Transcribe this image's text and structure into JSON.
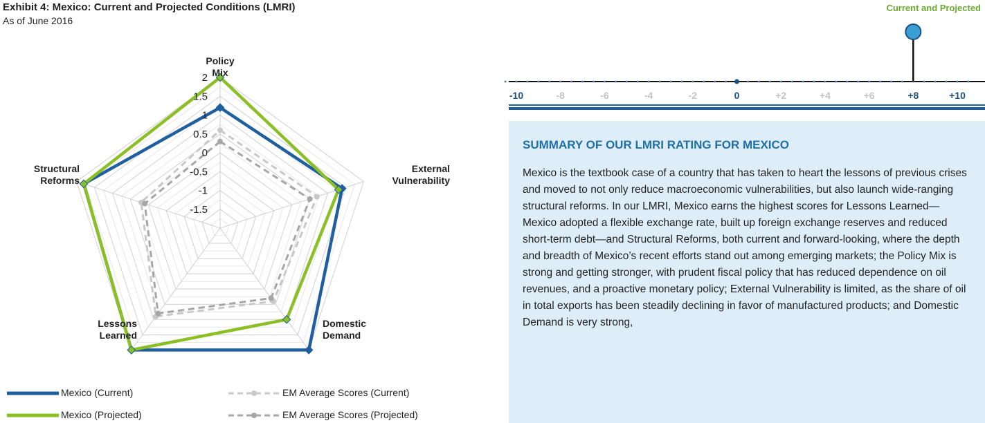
{
  "chart_data": {
    "type": "radar",
    "title": "Exhibit 4: Mexico: Current and Projected Conditions (LMRI)",
    "subtitle": "As of June 2016",
    "categories": [
      "Policy Mix",
      "External Vulnerability",
      "Domestic Demand",
      "Lessons Learned",
      "Structural Reforms"
    ],
    "ylim": [
      -2,
      2
    ],
    "yticks": [
      -2,
      {
        "value": -1.5,
        "label": "-1.5"
      },
      {
        "value": -1,
        "label": "-1"
      },
      {
        "value": -0.5,
        "label": "-0.5"
      },
      0,
      0.5,
      1,
      1.5,
      2
    ],
    "series": [
      {
        "name": "Mexico (Current)",
        "color": "#1f5fa0",
        "dashed": false,
        "values": [
          1.2,
          1.4,
          2.0,
          2.0,
          1.8
        ]
      },
      {
        "name": "Mexico (Projected)",
        "color": "#8cbf26",
        "dashed": false,
        "values": [
          2.0,
          1.3,
          1.0,
          2.0,
          1.8
        ]
      },
      {
        "name": "EM Average Scores (Current)",
        "color": "#c8c8c8",
        "dashed": true,
        "values": [
          0.6,
          0.7,
          0.4,
          0.9,
          0.2
        ]
      },
      {
        "name": "EM Average Scores (Projected)",
        "color": "#a6a6a6",
        "dashed": true,
        "values": [
          0.3,
          0.5,
          0.3,
          0.8,
          0.1
        ]
      }
    ]
  },
  "rating_scale": {
    "ticks": [
      {
        "value": -10,
        "label": "-10",
        "color": "#1f4f7f"
      },
      {
        "value": -8,
        "label": "-8",
        "color": "#c4c4c4"
      },
      {
        "value": -6,
        "label": "-6",
        "color": "#c4c4c4"
      },
      {
        "value": -4,
        "label": "-4",
        "color": "#c4c4c4"
      },
      {
        "value": -2,
        "label": "-2",
        "color": "#c4c4c4"
      },
      {
        "value": 0,
        "label": "0",
        "color": "#1f4f7f"
      },
      {
        "value": 2,
        "label": "+2",
        "color": "#c4c4c4"
      },
      {
        "value": 4,
        "label": "+4",
        "color": "#c4c4c4"
      },
      {
        "value": 6,
        "label": "+6",
        "color": "#c4c4c4"
      },
      {
        "value": 8,
        "label": "+8",
        "color": "#1f4f7f"
      },
      {
        "value": 10,
        "label": "+10",
        "color": "#1f4f7f"
      }
    ],
    "marker_label": "Current and Projected",
    "marker_value": 8
  },
  "summary": {
    "title": "SUMMARY OF OUR LMRI RATING FOR MEXICO",
    "text": "Mexico is the textbook case of a country that has taken to heart the lessons of previous crises and moved to not only reduce macroeconomic vulnerabilities, but also launch wide-ranging structural reforms. In our LMRI, Mexico earns the highest scores for Lessons Learned—Mexico adopted a flexible exchange rate, built up foreign exchange reserves and reduced short-term debt—and Structural Reforms, both current and forward-looking, where the depth and breadth of Mexico’s recent efforts stand out among emerging markets; the Policy Mix is strong and getting stronger, with prudent fiscal policy that has reduced dependence on oil revenues, and a proactive monetary policy; External Vulnerability is limited, as the share of oil in total exports has been steadily declining in favor of manufactured products; and Domestic Demand is very strong,"
  }
}
